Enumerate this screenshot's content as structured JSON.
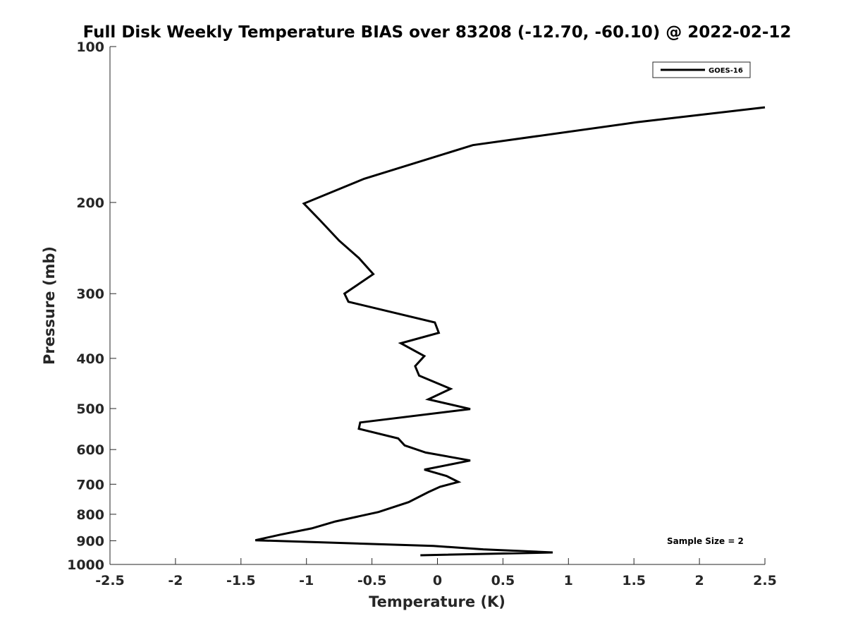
{
  "chart_data": {
    "type": "line",
    "title": "Full Disk Weekly Temperature BIAS over 83208 (-12.70, -60.10) @ 2022-02-12",
    "xlabel": "Temperature (K)",
    "ylabel": "Pressure (mb)",
    "xlim": [
      -2.5,
      2.5
    ],
    "ylim": [
      1000,
      100
    ],
    "yscale": "log",
    "y_reversed": true,
    "x_ticks": [
      "-2.5",
      "-2",
      "-1.5",
      "-1",
      "-0.5",
      "0",
      "0.5",
      "1",
      "1.5",
      "2",
      "2.5"
    ],
    "y_ticks": [
      "100",
      "200",
      "300",
      "400",
      "500",
      "600",
      "700",
      "800",
      "900",
      "1000"
    ],
    "grid": false,
    "legend": {
      "position": "top-right",
      "entries": [
        "GOES-16"
      ]
    },
    "annotation": "Sample Size = 2",
    "series": [
      {
        "name": "GOES-16",
        "color": "#000000",
        "x": [
          2.5,
          1.52,
          0.27,
          -0.56,
          -1.02,
          -0.9,
          -0.75,
          -0.6,
          -0.49,
          -0.71,
          -0.68,
          -0.02,
          0.01,
          -0.28,
          -0.1,
          -0.17,
          -0.14,
          0.1,
          -0.07,
          0.25,
          -0.59,
          -0.6,
          -0.3,
          -0.25,
          -0.09,
          0.25,
          -0.1,
          0.07,
          0.16,
          0.02,
          -0.07,
          -0.22,
          -0.45,
          -0.78,
          -0.96,
          -1.2,
          -1.39,
          -0.03,
          0.35,
          0.88,
          -0.13
        ],
        "y": [
          131,
          140,
          155,
          180,
          201,
          216,
          237,
          256,
          275,
          300,
          311,
          341,
          357,
          374,
          396,
          414,
          432,
          458,
          480,
          501,
          532,
          547,
          571,
          589,
          608,
          630,
          656,
          675,
          693,
          708,
          725,
          758,
          792,
          826,
          852,
          876,
          898,
          921,
          935,
          948,
          960
        ]
      }
    ]
  }
}
